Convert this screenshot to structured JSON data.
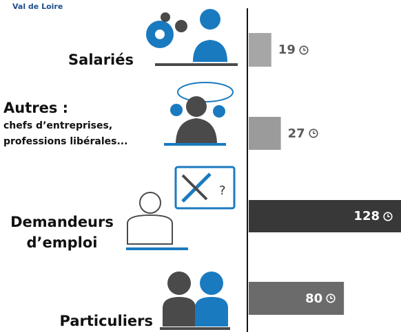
{
  "header": {
    "brand": "Val de Loire"
  },
  "chart_data": {
    "type": "bar",
    "orientation": "horizontal",
    "categories": [
      "Salariés",
      "Autres :",
      "Demandeurs d’emploi",
      "Particuliers"
    ],
    "subtitles": {
      "1": "chefs d’entreprises, professions libérales..."
    },
    "values": [
      19,
      27,
      128,
      80
    ],
    "colors": [
      "#a6a6a6",
      "#9b9b9b",
      "#383838",
      "#6b6b6b"
    ],
    "xlim": [
      0,
      128
    ]
  }
}
